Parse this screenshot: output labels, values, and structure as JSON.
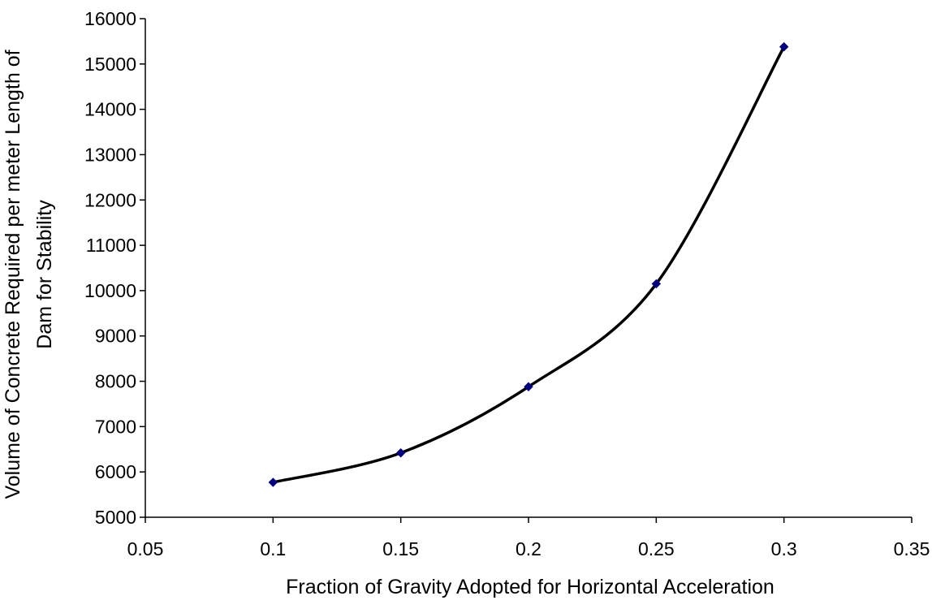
{
  "chart_data": {
    "type": "line",
    "title": "",
    "xlabel": "Fraction of Gravity Adopted for Horizontal Acceleration",
    "ylabel_lines": [
      "Volume of Concrete Required per meter Length of",
      "Dam for Stability"
    ],
    "xlim": [
      0.05,
      0.35
    ],
    "ylim": [
      5000,
      16000
    ],
    "x_ticks": [
      "0.05",
      "0.1",
      "0.15",
      "0.2",
      "0.25",
      "0.3",
      "0.35"
    ],
    "y_ticks": [
      "5000",
      "6000",
      "7000",
      "8000",
      "9000",
      "10000",
      "11000",
      "12000",
      "13000",
      "14000",
      "15000",
      "16000"
    ],
    "grid": false,
    "legend": "none",
    "series": [
      {
        "x": [
          0.1,
          0.15,
          0.2,
          0.25,
          0.3
        ],
        "y": [
          5770,
          6420,
          7880,
          10150,
          15380
        ],
        "line_color": "#000000",
        "marker_color": "#000080",
        "marker": "diamond",
        "smooth": true
      }
    ]
  }
}
